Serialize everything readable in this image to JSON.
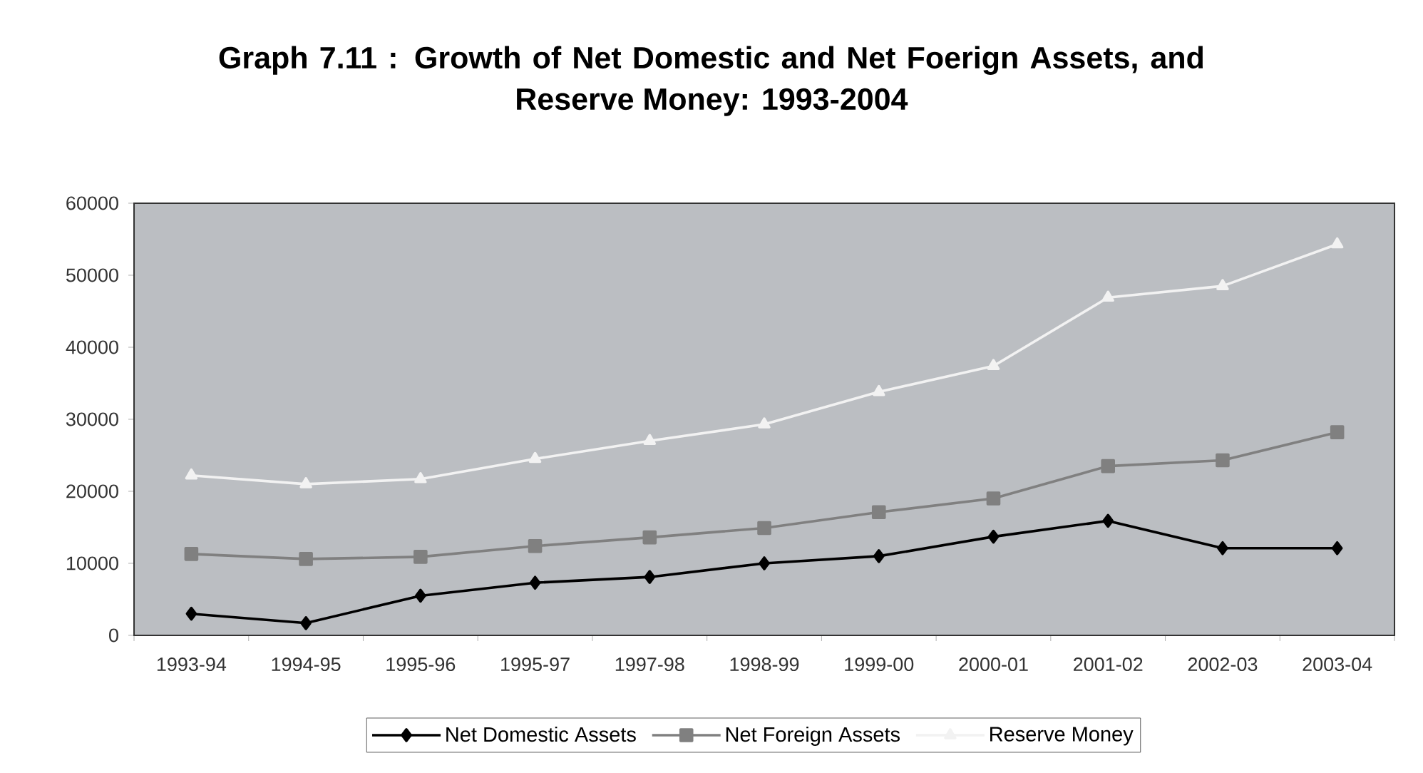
{
  "chart_data": {
    "type": "line",
    "title": "Graph 7.11 : Growth of Net Domestic and Net Foerign Assets, and Reserve Money: 1993-2004",
    "categories": [
      "1993-94",
      "1994-95",
      "1995-96",
      "1995-97",
      "1997-98",
      "1998-99",
      "1999-00",
      "2000-01",
      "2001-02",
      "2002-03",
      "2003-04"
    ],
    "series": [
      {
        "name": "Net Domestic Assets",
        "color": "#000000",
        "marker": "diamond",
        "values": [
          3000,
          1700,
          5500,
          7300,
          8100,
          10000,
          11000,
          13700,
          15900,
          12100,
          12100
        ]
      },
      {
        "name": "Net Foreign Assets",
        "color": "#808080",
        "marker": "square",
        "values": [
          11300,
          10600,
          10900,
          12400,
          13600,
          14900,
          17100,
          19000,
          23500,
          24300,
          28200
        ]
      },
      {
        "name": "Reserve Money",
        "color": "#f2f2f2",
        "marker": "triangle",
        "values": [
          22200,
          21000,
          21700,
          24500,
          27000,
          29300,
          33800,
          37400,
          46900,
          48500,
          54300
        ]
      }
    ],
    "ylim": [
      0,
      60000
    ],
    "yticks": [
      0,
      10000,
      20000,
      30000,
      40000,
      50000,
      60000
    ],
    "legend": "bottom"
  }
}
